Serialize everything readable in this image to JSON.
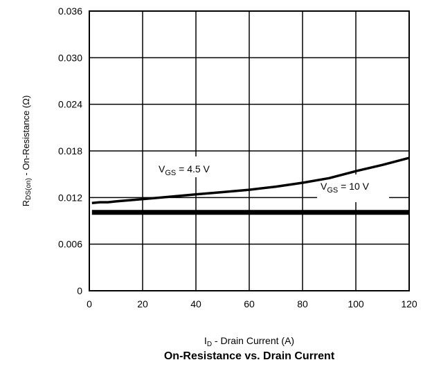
{
  "chart_data": {
    "type": "line",
    "title": "On-Resistance vs. Drain Current",
    "xlabel": {
      "main": "I",
      "sub": "D",
      "rest": " -  Drain Current (A)"
    },
    "ylabel": {
      "main": "R",
      "sub": "DS(on)",
      "rest": " - On-Resistance (Ω)"
    },
    "xlim": [
      0,
      120
    ],
    "ylim": [
      0,
      0.036
    ],
    "xticks": [
      "0",
      "20",
      "40",
      "60",
      "80",
      "100",
      "120"
    ],
    "yticks": [
      "0",
      "0.006",
      "0.012",
      "0.018",
      "0.024",
      "0.030",
      "0.036"
    ],
    "grid": true,
    "series": [
      {
        "name": {
          "main": "V",
          "sub": "GS",
          "rest": " = 4.5 V"
        },
        "x": [
          1,
          4,
          7,
          10,
          20,
          30,
          40,
          50,
          60,
          70,
          80,
          90,
          100,
          110,
          120
        ],
        "y": [
          0.0113,
          0.0114,
          0.0114,
          0.0115,
          0.0118,
          0.0121,
          0.0124,
          0.0127,
          0.013,
          0.0134,
          0.0139,
          0.0145,
          0.0154,
          0.0162,
          0.0171
        ]
      },
      {
        "name": {
          "main": "V",
          "sub": "GS",
          "rest": " = 10 V"
        },
        "x": [
          1,
          20,
          40,
          60,
          80,
          100,
          120
        ],
        "y": [
          0.0101,
          0.0101,
          0.0101,
          0.0101,
          0.0101,
          0.0101,
          0.0101
        ]
      }
    ]
  }
}
